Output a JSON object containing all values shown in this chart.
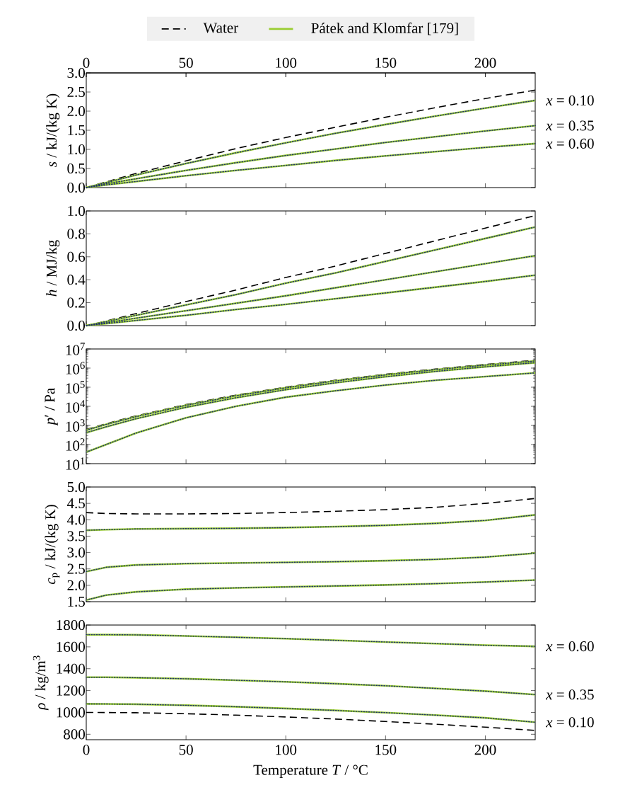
{
  "chart_data": [
    {
      "type": "line",
      "xlim": [
        0,
        225
      ],
      "xticks": [
        0,
        50,
        100,
        150,
        200
      ],
      "x2lim": [
        0,
        225
      ],
      "x2ticks": [
        0,
        50,
        100,
        150,
        200
      ],
      "tick_labels": "y",
      "ylim": [
        0,
        3
      ],
      "yticks": [
        {
          "value": 0,
          "label": "0.0"
        },
        {
          "value": 0.5,
          "label": "0.5"
        },
        {
          "value": 1,
          "label": "1.0"
        },
        {
          "value": 1.5,
          "label": "1.5"
        },
        {
          "value": 2,
          "label": "2.0"
        },
        {
          "value": 2.5,
          "label": "2.5"
        },
        {
          "value": 3,
          "label": "3.0"
        }
      ],
      "ylabel": "*s* / kJ/(kg K)",
      "legend": "top",
      "grid": false,
      "x": [
        0,
        10,
        25,
        50,
        75,
        100,
        125,
        150,
        175,
        200,
        225
      ],
      "series": [
        {
          "name": "Water",
          "color": "#000000",
          "line_style": "dashed",
          "values": [
            0,
            0.15,
            0.37,
            0.7,
            1.02,
            1.31,
            1.58,
            1.84,
            2.09,
            2.33,
            2.55
          ]
        },
        {
          "name": "Pátek and Klomfar [179]",
          "color": "#9acd32",
          "line_style": "solid",
          "values": [
            0,
            0.13,
            0.33,
            0.63,
            0.91,
            1.17,
            1.42,
            1.65,
            1.87,
            2.08,
            2.28
          ]
        },
        {
          "color": "#9acd32",
          "line_style": "solid",
          "values": [
            0,
            0.1,
            0.23,
            0.45,
            0.65,
            0.84,
            1.01,
            1.18,
            1.33,
            1.48,
            1.62
          ]
        },
        {
          "color": "#9acd32",
          "line_style": "solid",
          "values": [
            0,
            0.07,
            0.16,
            0.31,
            0.45,
            0.58,
            0.71,
            0.83,
            0.94,
            1.05,
            1.15
          ]
        },
        {
          "color": "#1f2f6f",
          "line_style": "dotted",
          "values": [
            0,
            0.13,
            0.33,
            0.63,
            0.91,
            1.17,
            1.42,
            1.65,
            1.87,
            2.08,
            2.28
          ]
        },
        {
          "color": "#1f2f6f",
          "line_style": "dotted",
          "values": [
            0,
            0.1,
            0.23,
            0.45,
            0.65,
            0.84,
            1.01,
            1.18,
            1.33,
            1.48,
            1.62
          ]
        },
        {
          "color": "#1f2f6f",
          "line_style": "dotted",
          "values": [
            0,
            0.07,
            0.16,
            0.31,
            0.45,
            0.58,
            0.71,
            0.83,
            0.94,
            1.05,
            1.15
          ]
        }
      ],
      "annotations": [
        "*x* = 0.10",
        "*x* = 0.35",
        "*x* = 0.60"
      ]
    },
    {
      "type": "line",
      "xlim": [
        0,
        225
      ],
      "xticks": [
        0,
        50,
        100,
        150,
        200
      ],
      "tick_labels": "y",
      "ylim": [
        0,
        1
      ],
      "yticks": [
        {
          "value": 0,
          "label": "0.0"
        },
        {
          "value": 0.2,
          "label": "0.2"
        },
        {
          "value": 0.4,
          "label": "0.4"
        },
        {
          "value": 0.6,
          "label": "0.6"
        },
        {
          "value": 0.8,
          "label": "0.8"
        },
        {
          "value": 1,
          "label": "1.0"
        }
      ],
      "ylabel": "*h* / MJ/kg",
      "grid": false,
      "x": [
        0,
        10,
        25,
        50,
        75,
        100,
        125,
        150,
        175,
        200,
        225
      ],
      "series": [
        {
          "color": "#000000",
          "line_style": "dashed",
          "values": [
            0,
            0.04,
            0.105,
            0.21,
            0.31,
            0.42,
            0.52,
            0.63,
            0.74,
            0.85,
            0.96
          ]
        },
        {
          "color": "#9acd32",
          "line_style": "solid",
          "values": [
            0,
            0.035,
            0.09,
            0.18,
            0.27,
            0.37,
            0.46,
            0.56,
            0.66,
            0.76,
            0.86
          ]
        },
        {
          "color": "#9acd32",
          "line_style": "solid",
          "values": [
            0,
            0.025,
            0.065,
            0.13,
            0.195,
            0.26,
            0.33,
            0.4,
            0.47,
            0.54,
            0.61
          ]
        },
        {
          "color": "#9acd32",
          "line_style": "solid",
          "values": [
            0,
            0.018,
            0.045,
            0.09,
            0.14,
            0.185,
            0.235,
            0.285,
            0.335,
            0.385,
            0.44
          ]
        },
        {
          "color": "#1f2f6f",
          "line_style": "dotted",
          "values": [
            0,
            0.035,
            0.09,
            0.18,
            0.27,
            0.37,
            0.46,
            0.56,
            0.66,
            0.76,
            0.86
          ]
        },
        {
          "color": "#1f2f6f",
          "line_style": "dotted",
          "values": [
            0,
            0.025,
            0.065,
            0.13,
            0.195,
            0.26,
            0.33,
            0.4,
            0.47,
            0.54,
            0.61
          ]
        },
        {
          "color": "#1f2f6f",
          "line_style": "dotted",
          "values": [
            0,
            0.018,
            0.045,
            0.09,
            0.14,
            0.185,
            0.235,
            0.285,
            0.335,
            0.385,
            0.44
          ]
        }
      ]
    },
    {
      "type": "line",
      "xlim": [
        0,
        225
      ],
      "xticks": [
        0,
        50,
        100,
        150,
        200
      ],
      "tick_labels": "y",
      "log": "y",
      "ylim": [
        10,
        10000000
      ],
      "yticks": [
        {
          "value": 10,
          "label": "10$^{1}$"
        },
        {
          "value": 100,
          "label": "10$^{2}$"
        },
        {
          "value": 1000,
          "label": "10$^{3}$"
        },
        {
          "value": 10000,
          "label": "10$^{4}$"
        },
        {
          "value": 100000,
          "label": "10$^{5}$"
        },
        {
          "value": 1000000,
          "label": "10$^{6}$"
        },
        {
          "value": 10000000,
          "label": "10$^{7}$"
        }
      ],
      "ylabel": "*p*′ / Pa",
      "grid": false,
      "x": [
        0,
        10,
        25,
        50,
        75,
        100,
        125,
        150,
        175,
        200,
        225
      ],
      "series": [
        {
          "color": "#000000",
          "line_style": "dashed",
          "values": [
            611,
            1230,
            3170,
            12350,
            38600,
            101300,
            232000,
            476000,
            892000,
            1555000,
            2550000
          ]
        },
        {
          "color": "#9acd32",
          "line_style": "solid",
          "values": [
            560,
            1130,
            2900,
            11300,
            35500,
            93000,
            214000,
            440000,
            826000,
            1440000,
            2360000
          ]
        },
        {
          "color": "#9acd32",
          "line_style": "solid",
          "values": [
            420,
            850,
            2250,
            8900,
            28000,
            74000,
            171000,
            354000,
            670000,
            1170000,
            1920000
          ]
        },
        {
          "color": "#9acd32",
          "line_style": "solid",
          "values": [
            40,
            100,
            400,
            2500,
            10000,
            30000,
            65000,
            130000,
            230000,
            360000,
            560000
          ]
        },
        {
          "color": "#1f2f6f",
          "line_style": "dotted",
          "values": [
            560,
            1130,
            2900,
            11300,
            35500,
            93000,
            214000,
            440000,
            826000,
            1440000,
            2360000
          ]
        },
        {
          "color": "#1f2f6f",
          "line_style": "dotted",
          "values": [
            420,
            850,
            2250,
            8900,
            28000,
            74000,
            171000,
            354000,
            670000,
            1170000,
            1920000
          ]
        },
        {
          "color": "#1f2f6f",
          "line_style": "dotted",
          "values": [
            40,
            100,
            400,
            2500,
            10000,
            30000,
            65000,
            130000,
            230000,
            360000,
            560000
          ]
        }
      ]
    },
    {
      "type": "line",
      "xlim": [
        0,
        225
      ],
      "xticks": [
        0,
        50,
        100,
        150,
        200
      ],
      "tick_labels": "y",
      "ylim": [
        1.5,
        5
      ],
      "yticks": [
        {
          "value": 1.5,
          "label": "1.5"
        },
        {
          "value": 2,
          "label": "2.0"
        },
        {
          "value": 2.5,
          "label": "2.5"
        },
        {
          "value": 3,
          "label": "3.0"
        },
        {
          "value": 3.5,
          "label": "3.5"
        },
        {
          "value": 4,
          "label": "4.0"
        },
        {
          "value": 4.5,
          "label": "4.5"
        },
        {
          "value": 5,
          "label": "5.0"
        }
      ],
      "ylabel": "*c*$_{p}$ / kJ/(kg K)",
      "grid": false,
      "x": [
        0,
        10,
        25,
        50,
        75,
        100,
        125,
        150,
        175,
        200,
        225
      ],
      "series": [
        {
          "color": "#000000",
          "line_style": "dashed",
          "values": [
            4.22,
            4.19,
            4.18,
            4.18,
            4.19,
            4.22,
            4.26,
            4.31,
            4.38,
            4.5,
            4.65
          ]
        },
        {
          "color": "#9acd32",
          "line_style": "solid",
          "values": [
            3.68,
            3.7,
            3.72,
            3.73,
            3.74,
            3.76,
            3.79,
            3.83,
            3.89,
            3.98,
            4.15
          ]
        },
        {
          "color": "#9acd32",
          "line_style": "solid",
          "values": [
            2.42,
            2.55,
            2.62,
            2.66,
            2.68,
            2.7,
            2.72,
            2.75,
            2.79,
            2.86,
            2.98
          ]
        },
        {
          "color": "#9acd32",
          "line_style": "solid",
          "values": [
            1.55,
            1.7,
            1.8,
            1.88,
            1.92,
            1.95,
            1.98,
            2.01,
            2.05,
            2.1,
            2.16
          ]
        },
        {
          "color": "#1f2f6f",
          "line_style": "dotted",
          "values": [
            3.68,
            3.7,
            3.72,
            3.73,
            3.74,
            3.76,
            3.79,
            3.83,
            3.89,
            3.98,
            4.15
          ]
        },
        {
          "color": "#1f2f6f",
          "line_style": "dotted",
          "values": [
            2.42,
            2.55,
            2.62,
            2.66,
            2.68,
            2.7,
            2.72,
            2.75,
            2.79,
            2.86,
            2.98
          ]
        },
        {
          "color": "#1f2f6f",
          "line_style": "dotted",
          "values": [
            1.55,
            1.7,
            1.8,
            1.88,
            1.92,
            1.95,
            1.98,
            2.01,
            2.05,
            2.1,
            2.16
          ]
        }
      ]
    },
    {
      "type": "line",
      "xlim": [
        0,
        225
      ],
      "xticks": [
        0,
        50,
        100,
        150,
        200
      ],
      "ylim": [
        750,
        1800
      ],
      "yticks": [
        800,
        1000,
        1200,
        1400,
        1600,
        1800
      ],
      "xlabel": "Temperature *T* / °C",
      "ylabel": "*ρ* / kg/m$^{3}$",
      "grid": false,
      "x": [
        0,
        10,
        25,
        50,
        75,
        100,
        125,
        150,
        175,
        200,
        225
      ],
      "series": [
        {
          "color": "#000000",
          "line_style": "dashed",
          "values": [
            1000,
            999,
            997,
            988,
            975,
            958,
            939,
            917,
            892,
            865,
            835
          ]
        },
        {
          "color": "#9acd32",
          "line_style": "solid",
          "values": [
            1078,
            1077,
            1075,
            1065,
            1052,
            1036,
            1018,
            998,
            975,
            950,
            910
          ]
        },
        {
          "color": "#9acd32",
          "line_style": "solid",
          "values": [
            1322,
            1322,
            1318,
            1308,
            1295,
            1280,
            1263,
            1244,
            1220,
            1195,
            1163
          ]
        },
        {
          "color": "#9acd32",
          "line_style": "solid",
          "values": [
            1712,
            1712,
            1710,
            1700,
            1688,
            1675,
            1660,
            1645,
            1630,
            1615,
            1605
          ]
        },
        {
          "color": "#1f2f6f",
          "line_style": "dotted",
          "values": [
            1078,
            1077,
            1075,
            1065,
            1052,
            1036,
            1018,
            998,
            975,
            950,
            910
          ]
        },
        {
          "color": "#1f2f6f",
          "line_style": "dotted",
          "values": [
            1322,
            1322,
            1318,
            1308,
            1295,
            1280,
            1263,
            1244,
            1220,
            1195,
            1163
          ]
        },
        {
          "color": "#1f2f6f",
          "line_style": "dotted",
          "values": [
            1712,
            1712,
            1710,
            1700,
            1688,
            1675,
            1660,
            1645,
            1630,
            1615,
            1605
          ]
        }
      ],
      "annotations": [
        "*x* = 0.60",
        "*x* = 0.35",
        "*x* = 0.10"
      ]
    }
  ]
}
